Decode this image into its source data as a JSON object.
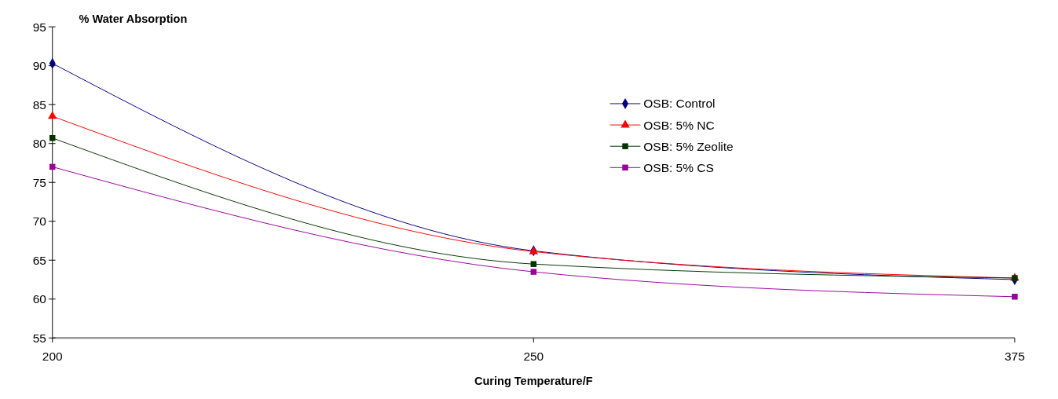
{
  "chart_data": {
    "type": "line",
    "title": "% Water Absorption",
    "xlabel": "Curing Temperature/F",
    "categories": [
      "200",
      "250",
      "375"
    ],
    "series": [
      {
        "name": "OSB: Control",
        "color": "#000080",
        "marker": "diamond",
        "values": [
          90.3,
          66.2,
          62.5
        ]
      },
      {
        "name": "OSB: 5% NC",
        "color": "#ff0000",
        "marker": "triangle",
        "values": [
          83.5,
          66.1,
          62.7
        ]
      },
      {
        "name": "OSB: 5% Zeolite",
        "color": "#003300",
        "marker": "square",
        "values": [
          80.7,
          64.5,
          62.7
        ]
      },
      {
        "name": "OSB: 5% CS",
        "color": "#990099",
        "marker": "square",
        "values": [
          77.0,
          63.5,
          60.3
        ]
      }
    ],
    "ylim": [
      55,
      95
    ],
    "yticks": [
      55,
      60,
      65,
      70,
      75,
      80,
      85,
      90,
      95
    ],
    "grid": false,
    "legend": "top right"
  }
}
